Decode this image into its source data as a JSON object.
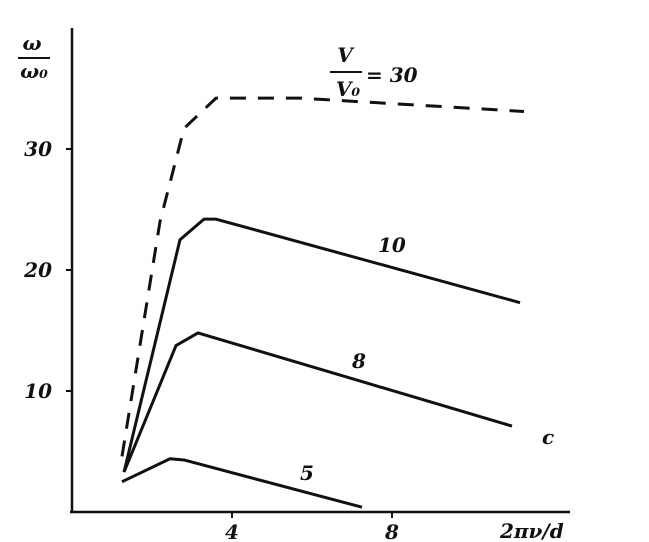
{
  "chart_data": {
    "type": "line",
    "y_label": {
      "numerator": "ω",
      "denominator": "ω₀"
    },
    "x_label": "2πν/d",
    "annotation": {
      "numerator": "V",
      "denominator": "V₀"
    },
    "corner_mark": "c",
    "xlim": [
      0,
      12.4
    ],
    "ylim": [
      0,
      39.5
    ],
    "xticks": [
      4,
      8
    ],
    "yticks": [
      10,
      20,
      30
    ],
    "series": [
      {
        "name": "= 30",
        "color": "#111111",
        "dashed": true,
        "x": [
          1.25,
          2.2,
          2.8,
          3.6,
          5.7,
          11.3
        ],
        "values": [
          4.6,
          24,
          31.7,
          34.2,
          34.2,
          33.1
        ]
      },
      {
        "name": "10",
        "color": "#111111",
        "dashed": false,
        "x": [
          1.3,
          2.7,
          3.3,
          3.6,
          11.2
        ],
        "values": [
          3.3,
          22.5,
          24.2,
          24.2,
          17.3
        ]
      },
      {
        "name": "8",
        "color": "#111111",
        "dashed": false,
        "x": [
          1.3,
          2.6,
          3.15,
          11
        ],
        "values": [
          3.3,
          13.75,
          14.8,
          7.1
        ]
      },
      {
        "name": "5",
        "color": "#111111",
        "dashed": false,
        "x": [
          1.25,
          2.45,
          2.8,
          7.25
        ],
        "values": [
          2.5,
          4.4,
          4.3,
          0.4
        ]
      }
    ]
  }
}
